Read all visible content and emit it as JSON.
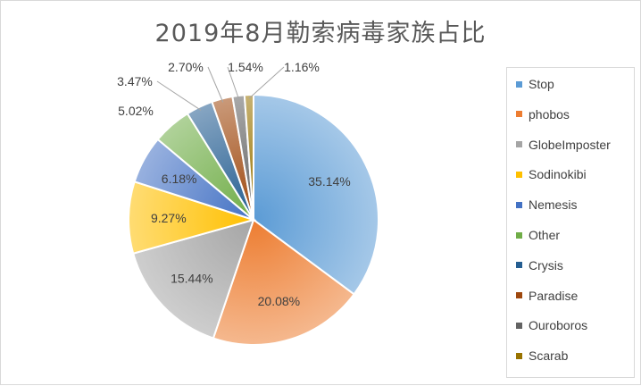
{
  "chart_data": {
    "type": "pie",
    "title": "2019年8月勒索病毒家族占比",
    "categories": [
      "Stop",
      "phobos",
      "GlobeImposter",
      "Sodinokibi",
      "Nemesis",
      "Other",
      "Crysis",
      "Paradise",
      "Ouroboros",
      "Scarab"
    ],
    "values": [
      35.14,
      20.08,
      15.44,
      9.27,
      6.18,
      5.02,
      3.47,
      2.7,
      1.54,
      1.16
    ],
    "labels": [
      "35.14%",
      "20.08%",
      "15.44%",
      "9.27%",
      "6.18%",
      "5.02%",
      "3.47%",
      "2.70%",
      "1.54%",
      "1.16%"
    ],
    "colors": [
      "#5b9bd5",
      "#ed7d31",
      "#a5a5a5",
      "#ffc000",
      "#4472c4",
      "#70ad47",
      "#255e91",
      "#9e480e",
      "#636363",
      "#997300"
    ],
    "legend_position": "right"
  }
}
